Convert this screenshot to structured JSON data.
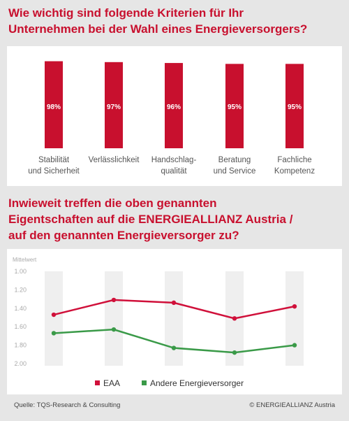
{
  "chart_data": [
    {
      "type": "bar",
      "title": "Wie wichtig sind folgende Kriterien für Ihr\nUnternehmen bei der Wahl eines Energieversorgers?",
      "categories": [
        "Stabilität\nund Sicherheit",
        "Verlässlichkeit",
        "Handschlag-\nqualität",
        "Beratung\nund Service",
        "Fachliche\nKompetenz"
      ],
      "values": [
        98,
        97,
        96,
        95,
        95
      ],
      "value_labels": [
        "98%",
        "97%",
        "96%",
        "95%",
        "95%"
      ],
      "color": "#c8102e",
      "ylim": [
        0,
        100
      ]
    },
    {
      "type": "line",
      "title": "Inwieweit treffen die oben genannten\nEigentschaften auf die ENERGIEALLIANZ Austria /\nauf den genannten Energieversorger zu?",
      "ylabel": "Mittelwert",
      "ylim": [
        2,
        1
      ],
      "yticks": [
        {
          "value": 1,
          "label": "1.00"
        },
        {
          "value": 1.2,
          "label": "1.20"
        },
        {
          "value": 1.4,
          "label": "1.40"
        },
        {
          "value": 1.6,
          "label": "1.60"
        },
        {
          "value": 1.8,
          "label": "1.80"
        },
        {
          "value": 2,
          "label": "2.00"
        }
      ],
      "series": [
        {
          "name": "EAA",
          "color": "#d0103a",
          "values": [
            1.47,
            1.31,
            1.34,
            1.51,
            1.38
          ]
        },
        {
          "name": "Andere Energieversorger",
          "color": "#3a9a48",
          "values": [
            1.67,
            1.63,
            1.83,
            1.88,
            1.8
          ]
        }
      ]
    }
  ],
  "footer": {
    "source": "Quelle: TQS-Research & Consulting",
    "copyright": "© ENERGIEALLIANZ Austria"
  }
}
